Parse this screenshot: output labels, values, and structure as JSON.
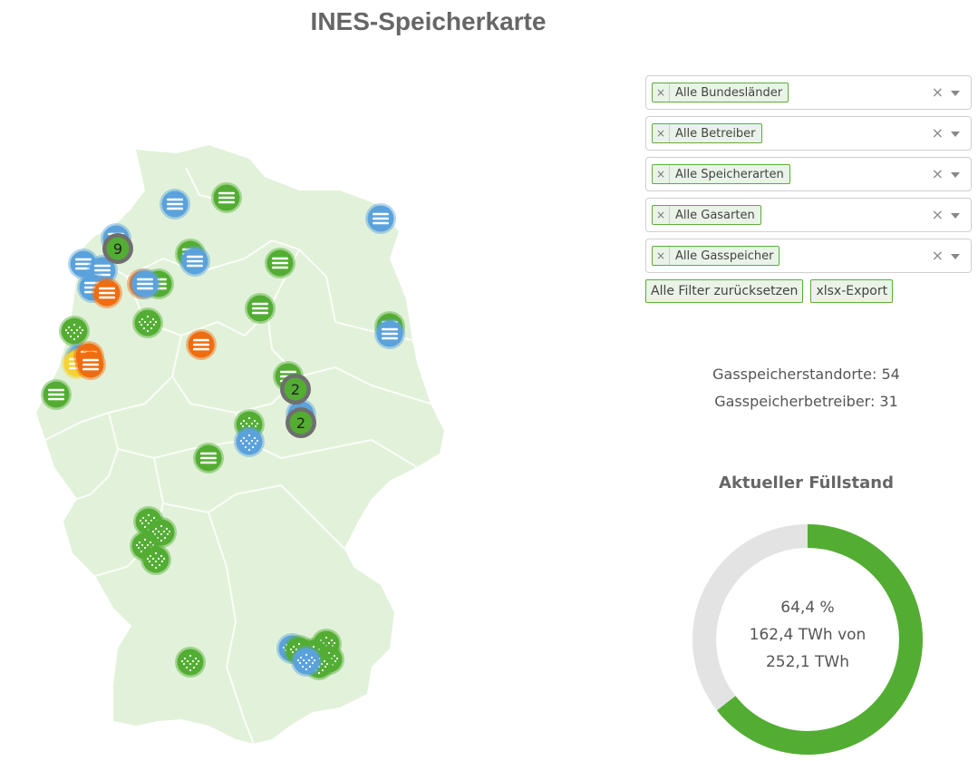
{
  "page": {
    "title": "INES-Speicherkarte"
  },
  "filters": [
    {
      "label": "Alle Bundesländer"
    },
    {
      "label": "Alle Betreiber"
    },
    {
      "label": "Alle Speicherarten"
    },
    {
      "label": "Alle Gasarten"
    },
    {
      "label": "Alle Gasspeicher"
    }
  ],
  "filter_remove_symbol": "×",
  "filter_clear_symbol": "×",
  "buttons": {
    "reset": "Alle Filter zurücksetzen",
    "export": "xlsx-Export"
  },
  "stats": {
    "locations": "Gasspeicherstandorte: 54",
    "operators": "Gasspeicherbetreiber: 31"
  },
  "gauge": {
    "title": "Aktueller Füllstand",
    "percent_label": "64,4 %",
    "line2": "162,4 TWh von",
    "line3": "252,1 TWh",
    "fill_fraction": 0.644,
    "fill_color": "#53ad33",
    "track_color": "#e3e3e3"
  },
  "colors": {
    "land": "#e2f2da",
    "border": "#ffffff",
    "green": "#53ad33",
    "blue": "#5ba2dc",
    "orange": "#ef6d10",
    "yellow": "#f5d235",
    "cluster": "#6f6f6f"
  },
  "markers": [
    {
      "type": "pore",
      "color": "green",
      "icon": "dots"
    },
    {
      "type": "cavern",
      "color": "blue",
      "icon": "lines"
    }
  ],
  "clusters": [
    {
      "count": "9"
    },
    {
      "count": "2"
    },
    {
      "count": "2"
    }
  ]
}
